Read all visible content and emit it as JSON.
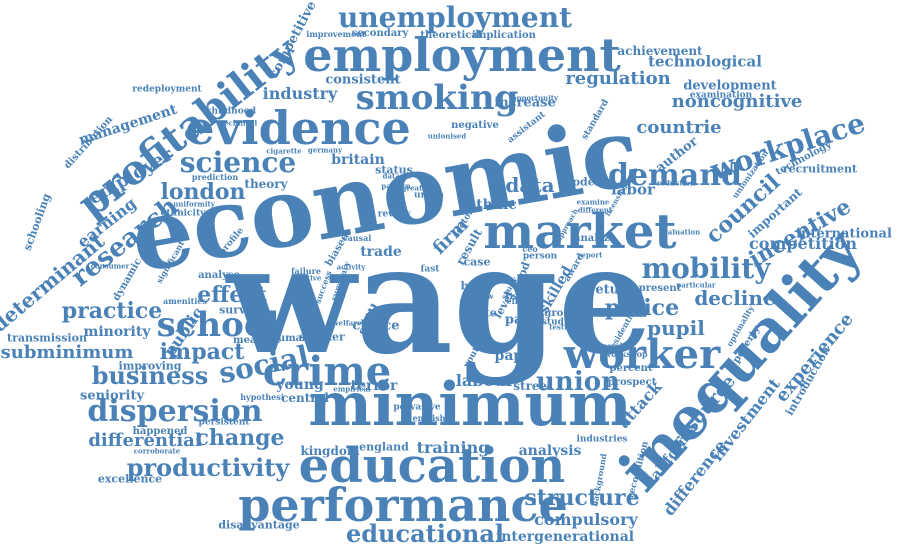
{
  "theme": {
    "word_color": "#4a82b8",
    "background": "#ffffff"
  },
  "words": [
    {
      "id": "wage",
      "text": "wage"
    },
    {
      "id": "economic",
      "text": "economic"
    },
    {
      "id": "minimum",
      "text": "minimum"
    },
    {
      "id": "inequality",
      "text": "inequality"
    },
    {
      "id": "education",
      "text": "education"
    },
    {
      "id": "market",
      "text": "market"
    },
    {
      "id": "performance",
      "text": "performance"
    },
    {
      "id": "employment",
      "text": "employment"
    },
    {
      "id": "evidence",
      "text": "evidence"
    },
    {
      "id": "profitability",
      "text": "profitability"
    },
    {
      "id": "smoking",
      "text": "smoking"
    },
    {
      "id": "unemployment",
      "text": "unemployment"
    },
    {
      "id": "crime",
      "text": "crime"
    },
    {
      "id": "worker",
      "text": "worker"
    },
    {
      "id": "school",
      "text": "school"
    },
    {
      "id": "dispersion",
      "text": "dispersion"
    },
    {
      "id": "business",
      "text": "business"
    },
    {
      "id": "social",
      "text": "social"
    },
    {
      "id": "science",
      "text": "science"
    },
    {
      "id": "demand",
      "text": "demand"
    },
    {
      "id": "workplace",
      "text": "workplace"
    },
    {
      "id": "mobility",
      "text": "mobility"
    },
    {
      "id": "union",
      "text": "union"
    },
    {
      "id": "research",
      "text": "research"
    },
    {
      "id": "employer",
      "text": "employer"
    },
    {
      "id": "earning",
      "text": "earning"
    },
    {
      "id": "determinant",
      "text": "determinant"
    },
    {
      "id": "london",
      "text": "london"
    },
    {
      "id": "council",
      "text": "council"
    },
    {
      "id": "incentive",
      "text": "incentive"
    },
    {
      "id": "productivity",
      "text": "productivity"
    },
    {
      "id": "educational",
      "text": "educational"
    },
    {
      "id": "structure",
      "text": "structure"
    },
    {
      "id": "compulsory",
      "text": "compulsory"
    },
    {
      "id": "intergenerational",
      "text": "intergenerational"
    },
    {
      "id": "change",
      "text": "change"
    },
    {
      "id": "differential",
      "text": "differential"
    },
    {
      "id": "impact",
      "text": "impact"
    },
    {
      "id": "subminimum",
      "text": "subminimum"
    },
    {
      "id": "practice",
      "text": "practice"
    },
    {
      "id": "effect",
      "text": "effect"
    },
    {
      "id": "firm",
      "text": "firm"
    },
    {
      "id": "data",
      "text": "data"
    },
    {
      "id": "regulation",
      "text": "regulation"
    },
    {
      "id": "noncognitive",
      "text": "noncognitive"
    },
    {
      "id": "countrie",
      "text": "countrie"
    },
    {
      "id": "industry",
      "text": "industry"
    },
    {
      "id": "police",
      "text": "police"
    },
    {
      "id": "decline",
      "text": "decline"
    },
    {
      "id": "pupil",
      "text": "pupil"
    },
    {
      "id": "labour",
      "text": "labour"
    },
    {
      "id": "competition",
      "text": "competition"
    },
    {
      "id": "international",
      "text": "international"
    },
    {
      "id": "experience",
      "text": "experience"
    },
    {
      "id": "resource",
      "text": "resource"
    },
    {
      "id": "investment",
      "text": "investment"
    },
    {
      "id": "attack",
      "text": "attack"
    },
    {
      "id": "difference",
      "text": "difference"
    },
    {
      "id": "california",
      "text": "california"
    },
    {
      "id": "public",
      "text": "public"
    },
    {
      "id": "management",
      "text": "management"
    },
    {
      "id": "technological",
      "text": "technological"
    },
    {
      "id": "achievement",
      "text": "achievement"
    },
    {
      "id": "development",
      "text": "development"
    },
    {
      "id": "increase",
      "text": "increase"
    },
    {
      "id": "consistent",
      "text": "consistent"
    },
    {
      "id": "britain",
      "text": "britain"
    },
    {
      "id": "status",
      "text": "status"
    },
    {
      "id": "author",
      "text": "author"
    },
    {
      "id": "labor",
      "text": "labor"
    },
    {
      "id": "ethnic",
      "text": "ethnic"
    },
    {
      "id": "return",
      "text": "return"
    },
    {
      "id": "model",
      "text": "model"
    },
    {
      "id": "theory",
      "text": "theory"
    },
    {
      "id": "trade",
      "text": "trade"
    },
    {
      "id": "young",
      "text": "young"
    },
    {
      "id": "terror",
      "text": "terror"
    },
    {
      "id": "minority",
      "text": "minority"
    },
    {
      "id": "seniority",
      "text": "seniority"
    },
    {
      "id": "training",
      "text": "training"
    },
    {
      "id": "analysis",
      "text": "analysis"
    },
    {
      "id": "kingdom",
      "text": "kingdom"
    },
    {
      "id": "england",
      "text": "england"
    },
    {
      "id": "street",
      "text": "street"
    },
    {
      "id": "paper",
      "text": "paper"
    },
    {
      "id": "panel",
      "text": "panel"
    },
    {
      "id": "skill",
      "text": "skill"
    },
    {
      "id": "skilled",
      "text": "skilled"
    },
    {
      "id": "choice",
      "text": "choice"
    },
    {
      "id": "central",
      "text": "central"
    },
    {
      "id": "survey",
      "text": "survey"
    },
    {
      "id": "smoker",
      "text": "smoker"
    },
    {
      "id": "happened",
      "text": "happened"
    },
    {
      "id": "disadvantage",
      "text": "disadvantage"
    },
    {
      "id": "excellence",
      "text": "excellence"
    },
    {
      "id": "schooling",
      "text": "schooling"
    },
    {
      "id": "transmission",
      "text": "transmission"
    },
    {
      "id": "improving",
      "text": "improving"
    },
    {
      "id": "recruitment",
      "text": "recruitment"
    },
    {
      "id": "technology",
      "text": "technology"
    },
    {
      "id": "important",
      "text": "important"
    },
    {
      "id": "redeployment",
      "text": "redeployment"
    },
    {
      "id": "competitive",
      "text": "competitive"
    },
    {
      "id": "theoretical",
      "text": "theoretical"
    },
    {
      "id": "implication",
      "text": "implication"
    },
    {
      "id": "secondary",
      "text": "secondary"
    },
    {
      "id": "improvement",
      "text": "improvement"
    },
    {
      "id": "childhood",
      "text": "childhood"
    },
    {
      "id": "distribution",
      "text": "distribution"
    },
    {
      "id": "ethnicity",
      "text": "ethnicity"
    },
    {
      "id": "negative",
      "text": "negative"
    },
    {
      "id": "assistant",
      "text": "assistant"
    },
    {
      "id": "examination",
      "text": "examination"
    },
    {
      "id": "case",
      "text": "case"
    },
    {
      "id": "ban",
      "text": "ban"
    },
    {
      "id": "test",
      "text": "test"
    },
    {
      "id": "industries",
      "text": "industries"
    },
    {
      "id": "poverty",
      "text": "poverty"
    },
    {
      "id": "percent",
      "text": "percent"
    },
    {
      "id": "prospect",
      "text": "prospect"
    },
    {
      "id": "present",
      "text": "present"
    },
    {
      "id": "introduction",
      "text": "introduction"
    },
    {
      "id": "recognition",
      "text": "recognition"
    },
    {
      "id": "result",
      "text": "result"
    },
    {
      "id": "group",
      "text": "group"
    },
    {
      "id": "studies",
      "text": "studies"
    },
    {
      "id": "human",
      "text": "human"
    },
    {
      "id": "measure",
      "text": "measure"
    },
    {
      "id": "analyse",
      "text": "analyse"
    },
    {
      "id": "profile",
      "text": "profile"
    },
    {
      "id": "dynamic",
      "text": "dynamic"
    },
    {
      "id": "prediction",
      "text": "prediction"
    },
    {
      "id": "opportunity",
      "text": "opportunity"
    },
    {
      "id": "standard",
      "text": "standard"
    },
    {
      "id": "valuation",
      "text": "valuation"
    },
    {
      "id": "reduction",
      "text": "reduction"
    },
    {
      "id": "food",
      "text": "food"
    },
    {
      "id": "white",
      "text": "white"
    },
    {
      "id": "exit",
      "text": "exit"
    },
    {
      "id": "fast",
      "text": "fast"
    },
    {
      "id": "youth",
      "text": "youth"
    },
    {
      "id": "unionised",
      "text": "unionised"
    },
    {
      "id": "cigarette",
      "text": "cigarette"
    },
    {
      "id": "germany",
      "text": "germany"
    },
    {
      "id": "biased",
      "text": "biased"
    },
    {
      "id": "causal",
      "text": "causal"
    },
    {
      "id": "activity",
      "text": "activity"
    },
    {
      "id": "failure",
      "text": "failure"
    },
    {
      "id": "positive",
      "text": "positive"
    },
    {
      "id": "english",
      "text": "english"
    },
    {
      "id": "pervasive",
      "text": "pervasive"
    },
    {
      "id": "empirical",
      "text": "empirical"
    },
    {
      "id": "corroborate",
      "text": "corroborate"
    },
    {
      "id": "persistent",
      "text": "persistent"
    },
    {
      "id": "hypothesi",
      "text": "hypothesi"
    },
    {
      "id": "amenities",
      "text": "amenities"
    },
    {
      "id": "significant",
      "text": "significant"
    },
    {
      "id": "consumer",
      "text": "consumer"
    },
    {
      "id": "uniformity",
      "text": "uniformity"
    },
    {
      "id": "review",
      "text": "review"
    },
    {
      "id": "sector",
      "text": "sector"
    },
    {
      "id": "approach",
      "text": "approach"
    },
    {
      "id": "person",
      "text": "person"
    },
    {
      "id": "award",
      "text": "award"
    },
    {
      "id": "intensive",
      "text": "intensive"
    },
    {
      "id": "workshop",
      "text": "workshop"
    },
    {
      "id": "residential",
      "text": "residential"
    },
    {
      "id": "background",
      "text": "background"
    },
    {
      "id": "level",
      "text": "level"
    },
    {
      "id": "study",
      "text": "study"
    },
    {
      "id": "particular",
      "text": "particular"
    },
    {
      "id": "rise",
      "text": "rise"
    },
    {
      "id": "law",
      "text": "law"
    },
    {
      "id": "effort",
      "text": "effort"
    },
    {
      "id": "summary",
      "text": "summary"
    },
    {
      "id": "success",
      "text": "success"
    },
    {
      "id": "welfare",
      "text": "welfare"
    },
    {
      "id": "technical",
      "text": "technical"
    },
    {
      "id": "dataset",
      "text": "dataset"
    },
    {
      "id": "pattern",
      "text": "pattern"
    },
    {
      "id": "urban",
      "text": "urban"
    },
    {
      "id": "examine",
      "text": "examine"
    },
    {
      "id": "different",
      "text": "different"
    },
    {
      "id": "greater",
      "text": "greater"
    },
    {
      "id": "testing",
      "text": "testing"
    },
    {
      "id": "optimality",
      "text": "optimality"
    },
    {
      "id": "unionization",
      "text": "unionization"
    },
    {
      "id": "licensing",
      "text": "licensing"
    },
    {
      "id": "ceo",
      "text": "ceo"
    },
    {
      "id": "analyze",
      "text": "analyze"
    },
    {
      "id": "report",
      "text": "report"
    }
  ]
}
